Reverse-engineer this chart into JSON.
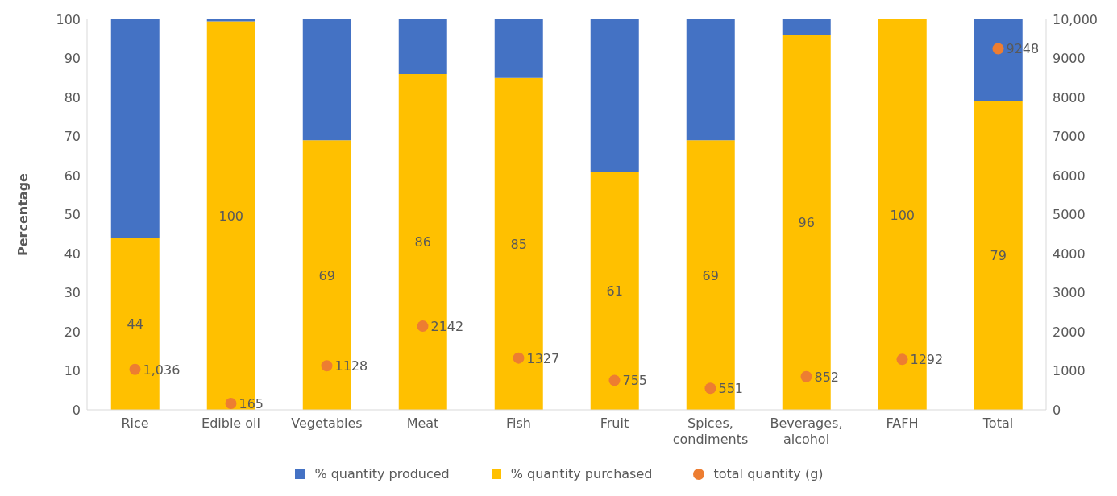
{
  "chart_data": {
    "type": "bar",
    "stacked": true,
    "categories": [
      "Rice",
      "Edible oil",
      "Vegetables",
      "Meat",
      "Fish",
      "Fruit",
      "Spices, condiments",
      "Beverages, alcohol",
      "FAFH",
      "Total"
    ],
    "ylabel": "Percentage",
    "ylim": [
      0,
      100
    ],
    "yticks": [
      0,
      10,
      20,
      30,
      40,
      50,
      60,
      70,
      80,
      90,
      100
    ],
    "y2lim": [
      0,
      10000
    ],
    "y2ticks": [
      0,
      {
        "value": 1000,
        "label": "1000"
      },
      {
        "value": 2000,
        "label": "2000"
      },
      {
        "value": 3000,
        "label": "3000"
      },
      {
        "value": 4000,
        "label": "4000"
      },
      {
        "value": 5000,
        "label": "5000"
      },
      {
        "value": 6000,
        "label": "6000"
      },
      {
        "value": 7000,
        "label": "7000"
      },
      {
        "value": 8000,
        "label": "8000"
      },
      {
        "value": 9000,
        "label": "9000"
      },
      {
        "value": 10000,
        "label": "10,000"
      }
    ],
    "series": [
      {
        "name": "% quantity purchased",
        "color": "#ffc000",
        "values": [
          44,
          99.5,
          69,
          86,
          85,
          61,
          69,
          96,
          100,
          79
        ],
        "value_labels": [
          "44",
          "100",
          "69",
          "86",
          "85",
          "61",
          "69",
          "96",
          "100",
          "79"
        ]
      },
      {
        "name": "% quantity produced",
        "color": "#4472c4",
        "values": [
          56,
          0.5,
          31,
          14,
          15,
          39,
          31,
          4,
          0,
          21
        ]
      },
      {
        "name": "total quantity (g)",
        "type": "scatter",
        "axis": "y2",
        "color": "#ed7d31",
        "marker": "circle",
        "values": [
          1036,
          165,
          1128,
          2142,
          1327,
          755,
          551,
          852,
          1292,
          9248
        ],
        "value_labels": [
          "1,036",
          "165",
          "1128",
          "2142",
          "1327",
          "755",
          "551",
          "852",
          "1292",
          "9248"
        ]
      }
    ],
    "legend": "bottom",
    "grid": false
  }
}
